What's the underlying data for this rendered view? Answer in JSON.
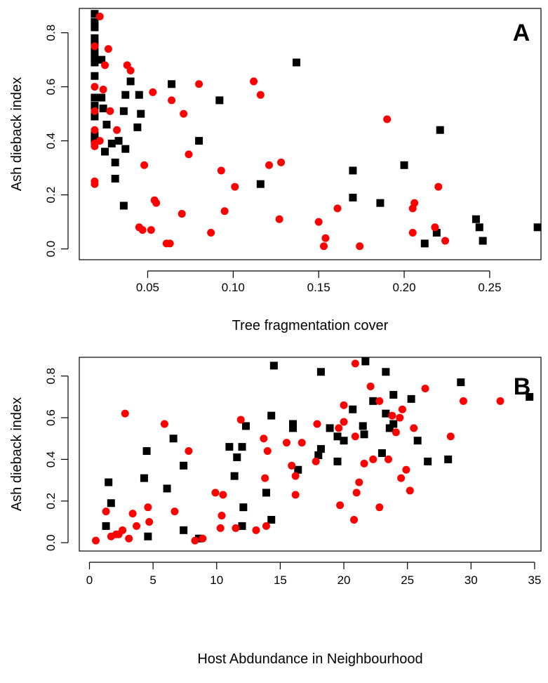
{
  "colors": {
    "series_black": "#000000",
    "series_red": "#ff0000"
  },
  "chart_data": [
    {
      "type": "scatter",
      "panel_label": "A",
      "xlabel": "Tree fragmentation cover",
      "ylabel": "Ash dieback index",
      "xlim": [
        0.01,
        0.28
      ],
      "ylim": [
        -0.04,
        0.89
      ],
      "x_ticks": [
        0.05,
        0.1,
        0.15,
        0.2,
        0.25
      ],
      "x_tick_labels": [
        "0.05",
        "0.10",
        "0.15",
        "0.20",
        "0.25"
      ],
      "y_ticks": [
        0.0,
        0.2,
        0.4,
        0.6,
        0.8
      ],
      "y_tick_labels": [
        "0.0",
        "0.2",
        "0.4",
        "0.6",
        "0.8"
      ],
      "grid": false,
      "series": [
        {
          "marker": "square",
          "color": "#000000",
          "points": [
            [
              0.019,
              0.87
            ],
            [
              0.019,
              0.84
            ],
            [
              0.019,
              0.82
            ],
            [
              0.019,
              0.78
            ],
            [
              0.019,
              0.76
            ],
            [
              0.019,
              0.73
            ],
            [
              0.019,
              0.71
            ],
            [
              0.019,
              0.69
            ],
            [
              0.019,
              0.64
            ],
            [
              0.019,
              0.56
            ],
            [
              0.019,
              0.53
            ],
            [
              0.019,
              0.49
            ],
            [
              0.019,
              0.42
            ],
            [
              0.019,
              0.4
            ],
            [
              0.023,
              0.7
            ],
            [
              0.023,
              0.56
            ],
            [
              0.024,
              0.52
            ],
            [
              0.025,
              0.36
            ],
            [
              0.026,
              0.46
            ],
            [
              0.029,
              0.39
            ],
            [
              0.031,
              0.32
            ],
            [
              0.031,
              0.26
            ],
            [
              0.033,
              0.4
            ],
            [
              0.036,
              0.51
            ],
            [
              0.036,
              0.16
            ],
            [
              0.037,
              0.57
            ],
            [
              0.037,
              0.37
            ],
            [
              0.04,
              0.62
            ],
            [
              0.044,
              0.45
            ],
            [
              0.045,
              0.57
            ],
            [
              0.046,
              0.5
            ],
            [
              0.064,
              0.61
            ],
            [
              0.08,
              0.4
            ],
            [
              0.092,
              0.55
            ],
            [
              0.116,
              0.24
            ],
            [
              0.137,
              0.69
            ],
            [
              0.17,
              0.29
            ],
            [
              0.17,
              0.19
            ],
            [
              0.186,
              0.17
            ],
            [
              0.2,
              0.31
            ],
            [
              0.219,
              0.06
            ],
            [
              0.221,
              0.44
            ],
            [
              0.212,
              0.02
            ],
            [
              0.242,
              0.11
            ],
            [
              0.244,
              0.08
            ],
            [
              0.246,
              0.03
            ],
            [
              0.278,
              0.08
            ]
          ]
        },
        {
          "marker": "circle",
          "color": "#ff0000",
          "points": [
            [
              0.019,
              0.75
            ],
            [
              0.019,
              0.6
            ],
            [
              0.019,
              0.51
            ],
            [
              0.019,
              0.44
            ],
            [
              0.019,
              0.39
            ],
            [
              0.019,
              0.38
            ],
            [
              0.019,
              0.25
            ],
            [
              0.019,
              0.24
            ],
            [
              0.022,
              0.86
            ],
            [
              0.022,
              0.4
            ],
            [
              0.024,
              0.59
            ],
            [
              0.025,
              0.68
            ],
            [
              0.027,
              0.74
            ],
            [
              0.028,
              0.51
            ],
            [
              0.032,
              0.44
            ],
            [
              0.038,
              0.68
            ],
            [
              0.04,
              0.66
            ],
            [
              0.045,
              0.08
            ],
            [
              0.047,
              0.07
            ],
            [
              0.048,
              0.31
            ],
            [
              0.052,
              0.07
            ],
            [
              0.053,
              0.58
            ],
            [
              0.054,
              0.18
            ],
            [
              0.055,
              0.17
            ],
            [
              0.061,
              0.02
            ],
            [
              0.063,
              0.02
            ],
            [
              0.064,
              0.55
            ],
            [
              0.07,
              0.13
            ],
            [
              0.071,
              0.5
            ],
            [
              0.074,
              0.35
            ],
            [
              0.08,
              0.61
            ],
            [
              0.087,
              0.06
            ],
            [
              0.093,
              0.29
            ],
            [
              0.095,
              0.14
            ],
            [
              0.101,
              0.23
            ],
            [
              0.112,
              0.62
            ],
            [
              0.116,
              0.57
            ],
            [
              0.121,
              0.31
            ],
            [
              0.127,
              0.11
            ],
            [
              0.128,
              0.32
            ],
            [
              0.15,
              0.1
            ],
            [
              0.153,
              0.01
            ],
            [
              0.154,
              0.04
            ],
            [
              0.161,
              0.15
            ],
            [
              0.174,
              0.01
            ],
            [
              0.19,
              0.48
            ],
            [
              0.205,
              0.15
            ],
            [
              0.206,
              0.17
            ],
            [
              0.205,
              0.06
            ],
            [
              0.218,
              0.08
            ],
            [
              0.22,
              0.23
            ],
            [
              0.224,
              0.03
            ]
          ]
        }
      ]
    },
    {
      "type": "scatter",
      "panel_label": "B",
      "xlabel": "Host Abdundance in Neighbourhood",
      "ylabel": "Ash dieback index",
      "xlim": [
        -0.8,
        35.5
      ],
      "ylim": [
        -0.04,
        0.89
      ],
      "x_ticks": [
        0,
        5,
        10,
        15,
        20,
        25,
        30,
        35
      ],
      "x_tick_labels": [
        "0",
        "5",
        "10",
        "15",
        "20",
        "25",
        "30",
        "35"
      ],
      "y_ticks": [
        0.0,
        0.2,
        0.4,
        0.6,
        0.8
      ],
      "y_tick_labels": [
        "0.0",
        "0.2",
        "0.4",
        "0.6",
        "0.8"
      ],
      "grid": false,
      "series": [
        {
          "marker": "square",
          "color": "#000000",
          "points": [
            [
              1.3,
              0.08
            ],
            [
              1.5,
              0.29
            ],
            [
              1.7,
              0.19
            ],
            [
              4.3,
              0.31
            ],
            [
              4.5,
              0.44
            ],
            [
              4.6,
              0.03
            ],
            [
              6.1,
              0.26
            ],
            [
              6.6,
              0.5
            ],
            [
              7.4,
              0.37
            ],
            [
              7.4,
              0.06
            ],
            [
              8.6,
              0.02
            ],
            [
              11.0,
              0.46
            ],
            [
              11.4,
              0.32
            ],
            [
              11.6,
              0.41
            ],
            [
              12.0,
              0.08
            ],
            [
              12.0,
              0.46
            ],
            [
              12.1,
              0.17
            ],
            [
              12.3,
              0.56
            ],
            [
              13.9,
              0.24
            ],
            [
              14.3,
              0.11
            ],
            [
              14.3,
              0.61
            ],
            [
              14.5,
              0.85
            ],
            [
              16.0,
              0.57
            ],
            [
              16.0,
              0.55
            ],
            [
              16.4,
              0.35
            ],
            [
              18.0,
              0.42
            ],
            [
              18.2,
              0.82
            ],
            [
              18.2,
              0.45
            ],
            [
              18.9,
              0.55
            ],
            [
              19.5,
              0.51
            ],
            [
              19.5,
              0.39
            ],
            [
              20.0,
              0.49
            ],
            [
              20.7,
              0.64
            ],
            [
              21.5,
              0.56
            ],
            [
              21.6,
              0.52
            ],
            [
              21.7,
              0.87
            ],
            [
              22.3,
              0.68
            ],
            [
              23.0,
              0.43
            ],
            [
              23.3,
              0.62
            ],
            [
              23.3,
              0.82
            ],
            [
              23.6,
              0.55
            ],
            [
              23.9,
              0.71
            ],
            [
              23.9,
              0.57
            ],
            [
              25.3,
              0.69
            ],
            [
              25.8,
              0.49
            ],
            [
              26.6,
              0.39
            ],
            [
              28.2,
              0.4
            ],
            [
              29.2,
              0.77
            ],
            [
              34.6,
              0.7
            ]
          ]
        },
        {
          "marker": "circle",
          "color": "#ff0000",
          "points": [
            [
              0.5,
              0.01
            ],
            [
              1.3,
              0.15
            ],
            [
              1.7,
              0.03
            ],
            [
              2.1,
              0.04
            ],
            [
              2.3,
              0.04
            ],
            [
              2.6,
              0.06
            ],
            [
              2.8,
              0.62
            ],
            [
              3.1,
              0.02
            ],
            [
              3.4,
              0.14
            ],
            [
              3.7,
              0.08
            ],
            [
              4.6,
              0.17
            ],
            [
              4.7,
              0.1
            ],
            [
              5.9,
              0.57
            ],
            [
              6.7,
              0.15
            ],
            [
              7.8,
              0.44
            ],
            [
              8.3,
              0.01
            ],
            [
              8.9,
              0.02
            ],
            [
              9.9,
              0.24
            ],
            [
              10.3,
              0.07
            ],
            [
              10.4,
              0.13
            ],
            [
              10.5,
              0.23
            ],
            [
              11.5,
              0.07
            ],
            [
              11.9,
              0.59
            ],
            [
              13.1,
              0.06
            ],
            [
              13.7,
              0.5
            ],
            [
              13.8,
              0.31
            ],
            [
              13.9,
              0.08
            ],
            [
              14.0,
              0.44
            ],
            [
              15.5,
              0.48
            ],
            [
              15.9,
              0.37
            ],
            [
              16.2,
              0.23
            ],
            [
              16.2,
              0.32
            ],
            [
              16.7,
              0.48
            ],
            [
              17.8,
              0.39
            ],
            [
              17.9,
              0.57
            ],
            [
              19.6,
              0.55
            ],
            [
              19.7,
              0.18
            ],
            [
              20.0,
              0.58
            ],
            [
              20.0,
              0.66
            ],
            [
              20.8,
              0.11
            ],
            [
              20.9,
              0.51
            ],
            [
              20.9,
              0.86
            ],
            [
              21.0,
              0.24
            ],
            [
              21.2,
              0.29
            ],
            [
              21.6,
              0.38
            ],
            [
              22.1,
              0.75
            ],
            [
              22.3,
              0.4
            ],
            [
              22.8,
              0.17
            ],
            [
              22.8,
              0.68
            ],
            [
              23.5,
              0.4
            ],
            [
              23.8,
              0.61
            ],
            [
              24.1,
              0.53
            ],
            [
              24.4,
              0.6
            ],
            [
              24.5,
              0.31
            ],
            [
              24.6,
              0.64
            ],
            [
              24.9,
              0.35
            ],
            [
              25.2,
              0.25
            ],
            [
              25.5,
              0.55
            ],
            [
              26.4,
              0.74
            ],
            [
              28.4,
              0.51
            ],
            [
              29.4,
              0.68
            ],
            [
              32.3,
              0.68
            ]
          ]
        }
      ]
    }
  ]
}
